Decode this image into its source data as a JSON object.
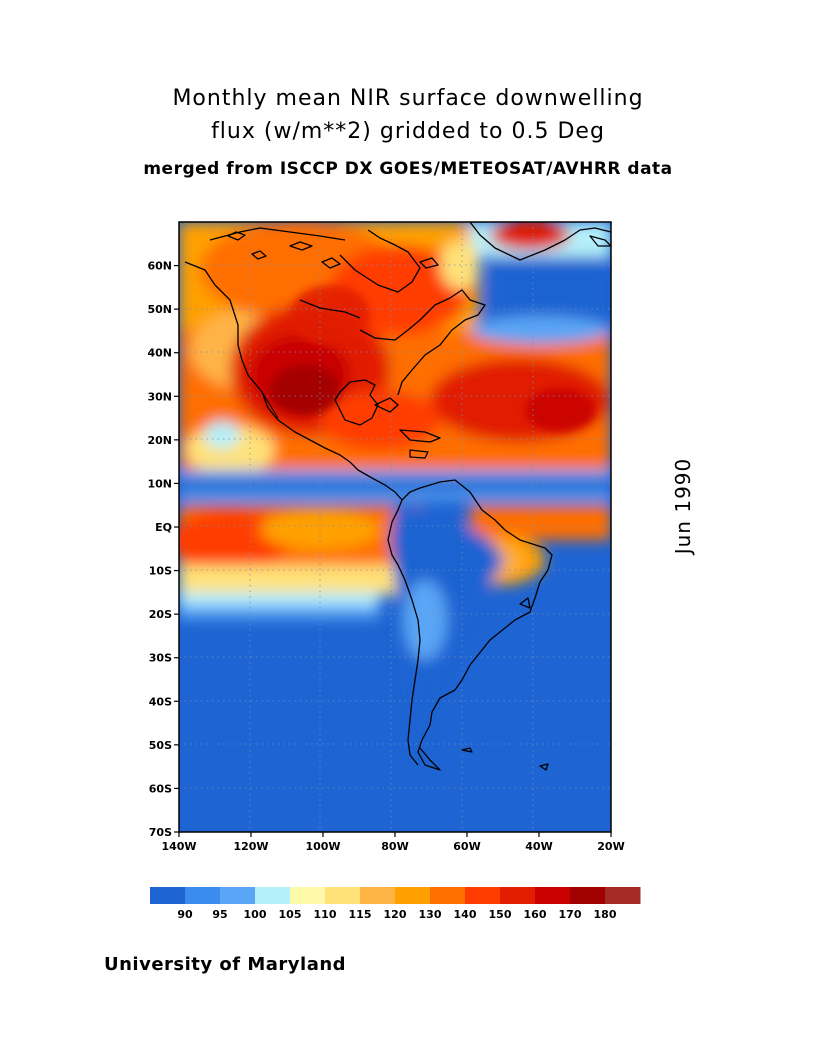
{
  "header": {
    "title_line1": "Monthly mean NIR surface downwelling",
    "title_line2": "flux (w/m**2) gridded to 0.5 Deg",
    "subtitle": "merged from ISCCP DX GOES/METEOSAT/AVHRR data"
  },
  "date_label": "Jun 1990",
  "footer": "University of Maryland",
  "map": {
    "lon_range": [
      -140,
      -20
    ],
    "lat_range": [
      -70,
      70
    ],
    "lat_labels": [
      "60N",
      "50N",
      "40N",
      "30N",
      "20N",
      "10N",
      "EQ",
      "10S",
      "20S",
      "30S",
      "40S",
      "50S",
      "60S",
      "70S"
    ],
    "lat_values": [
      60,
      50,
      40,
      30,
      20,
      10,
      0,
      -10,
      -20,
      -30,
      -40,
      -50,
      -60,
      -70
    ],
    "lon_labels": [
      "140W",
      "120W",
      "100W",
      "80W",
      "60W",
      "40W",
      "20W"
    ],
    "lon_values": [
      -140,
      -120,
      -100,
      -80,
      -60,
      -40,
      -20
    ],
    "grid": "dotted"
  },
  "colorbar": {
    "colors": [
      "#1e64d2",
      "#3c8cf0",
      "#5aa5f5",
      "#b4f0fa",
      "#fffaaa",
      "#ffe178",
      "#ffb446",
      "#ffa000",
      "#ff6e00",
      "#ff3c00",
      "#e11e00",
      "#c80000",
      "#a00000",
      "#a52a28"
    ],
    "labels": [
      "90",
      "95",
      "100",
      "105",
      "110",
      "115",
      "120",
      "130",
      "140",
      "150",
      "160",
      "170",
      "180"
    ]
  }
}
